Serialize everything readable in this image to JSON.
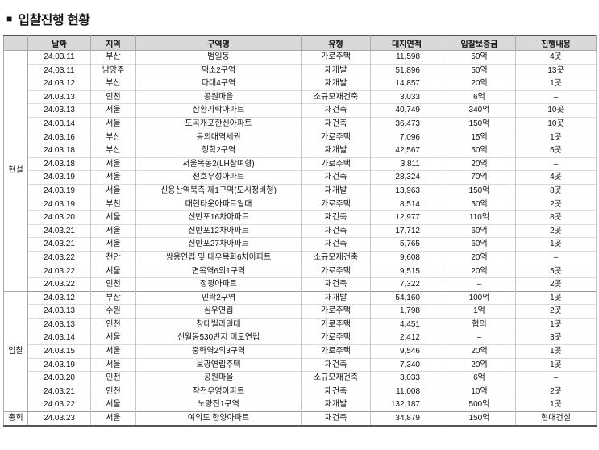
{
  "title": {
    "bullet": "■",
    "text": "입찰진행 현황"
  },
  "table": {
    "headers": [
      "날짜",
      "지역",
      "구역명",
      "유형",
      "대지면적",
      "입찰보증금",
      "진행내용"
    ],
    "groups": [
      {
        "label": "현설",
        "rows": [
          [
            "24.03.11",
            "부산",
            "범일동",
            "가로주택",
            "11,598",
            "50억",
            "4곳"
          ],
          [
            "24.03.11",
            "남양주",
            "덕소2구역",
            "재개발",
            "51,896",
            "50억",
            "13곳"
          ],
          [
            "24.03.12",
            "부산",
            "다대4구역",
            "재개발",
            "14,857",
            "20억",
            "1곳"
          ],
          [
            "24.03.13",
            "인천",
            "공원마을",
            "소규모재건축",
            "3,033",
            "6억",
            "–"
          ],
          [
            "24.03.13",
            "서울",
            "삼환가락아파트",
            "재건축",
            "40,749",
            "340억",
            "10곳"
          ],
          [
            "24.03.14",
            "서울",
            "도곡개포한신아파트",
            "재건축",
            "36,473",
            "150억",
            "10곳"
          ],
          [
            "24.03.16",
            "부산",
            "동의대역세권",
            "가로주택",
            "7,096",
            "15억",
            "1곳"
          ],
          [
            "24.03.18",
            "부산",
            "청학2구역",
            "재개발",
            "42,567",
            "50억",
            "5곳"
          ],
          [
            "24.03.18",
            "서울",
            "서울목동2(LH참여형)",
            "가로주택",
            "3,811",
            "20억",
            "–"
          ],
          [
            "24.03.19",
            "서울",
            "천호우성아파트",
            "재건축",
            "28,324",
            "70억",
            "4곳"
          ],
          [
            "24.03.19",
            "서울",
            "신용산역북측 제1구역(도시정비형)",
            "재개발",
            "13,963",
            "150억",
            "8곳"
          ],
          [
            "24.03.19",
            "부천",
            "대현타운아파트일대",
            "가로주택",
            "8,514",
            "50억",
            "2곳"
          ],
          [
            "24.03.20",
            "서울",
            "신반포16차아파트",
            "재건축",
            "12,977",
            "110억",
            "8곳"
          ],
          [
            "24.03.21",
            "서울",
            "신반포12차아파트",
            "재건축",
            "17,712",
            "60억",
            "2곳"
          ],
          [
            "24.03.21",
            "서울",
            "신반포27차아파트",
            "재건축",
            "5,765",
            "60억",
            "1곳"
          ],
          [
            "24.03.22",
            "천안",
            "쌍용연립 및 대우목화6차아파트",
            "소규모재건축",
            "9,608",
            "20억",
            "–"
          ],
          [
            "24.03.22",
            "서울",
            "면목역6의1구역",
            "가로주택",
            "9,515",
            "20억",
            "5곳"
          ],
          [
            "24.03.22",
            "인천",
            "정광아파트",
            "재건축",
            "7,322",
            "–",
            "2곳"
          ]
        ]
      },
      {
        "label": "입찰",
        "rows": [
          [
            "24.03.12",
            "부산",
            "민락2구역",
            "재개발",
            "54,160",
            "100억",
            "1곳"
          ],
          [
            "24.03.13",
            "수원",
            "심우연립",
            "가로주택",
            "1,798",
            "1억",
            "2곳"
          ],
          [
            "24.03.13",
            "인천",
            "창대빌라일대",
            "가로주택",
            "4,451",
            "협의",
            "1곳"
          ],
          [
            "24.03.14",
            "서울",
            "신월동530번지 미도연립",
            "가로주택",
            "2,412",
            "–",
            "3곳"
          ],
          [
            "24.03.15",
            "서울",
            "중화역2의3구역",
            "가로주택",
            "9,546",
            "20억",
            "1곳"
          ],
          [
            "24.03.19",
            "서울",
            "보광연립주택",
            "재건축",
            "7,340",
            "20억",
            "1곳"
          ],
          [
            "24.03.20",
            "인천",
            "공원마을",
            "소규모재건축",
            "3,033",
            "6억",
            "–"
          ],
          [
            "24.03.21",
            "인천",
            "작전우영아파트",
            "재건축",
            "11,008",
            "10억",
            "2곳"
          ],
          [
            "24.03.22",
            "서울",
            "노량진1구역",
            "재개발",
            "132,187",
            "500억",
            "1곳"
          ]
        ]
      },
      {
        "label": "총회",
        "rows": [
          [
            "24.03.23",
            "서울",
            "여의도 한양아파트",
            "재건축",
            "34,879",
            "150억",
            "현대건설"
          ]
        ]
      }
    ]
  }
}
